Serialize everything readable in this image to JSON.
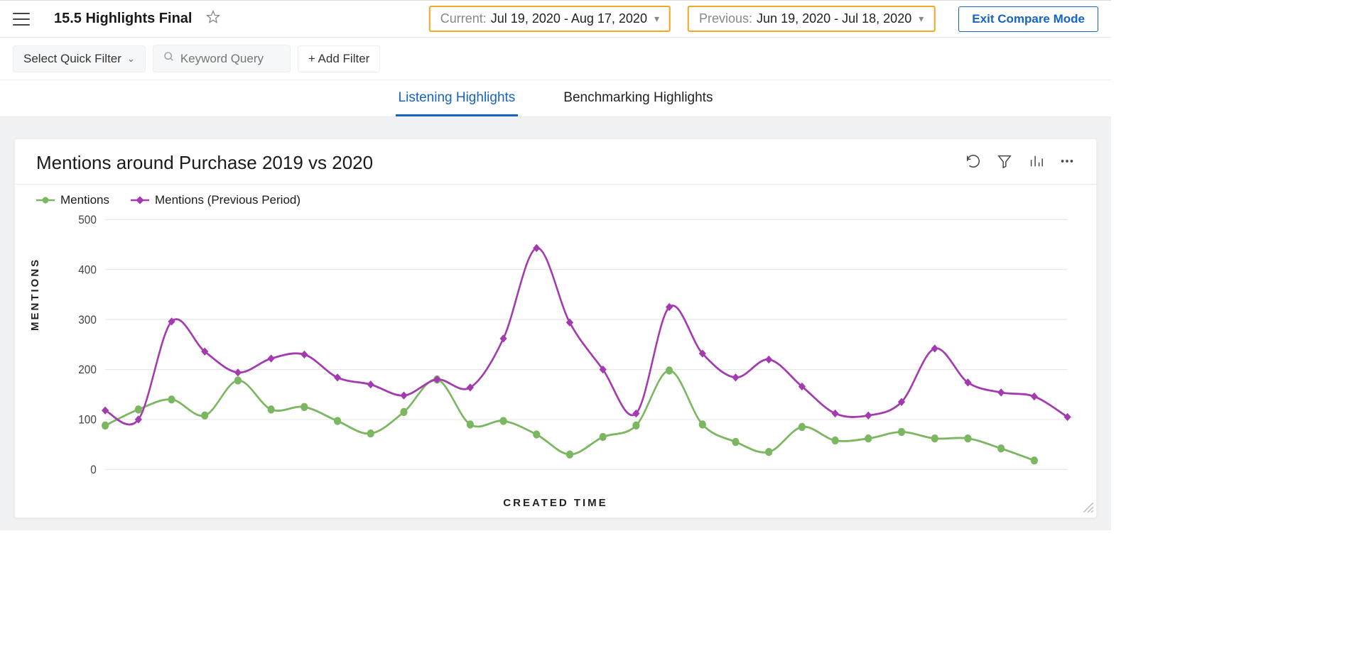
{
  "header": {
    "title": "15.5 Highlights Final",
    "current": {
      "label": "Current:",
      "range": "Jul 19, 2020 - Aug 17, 2020"
    },
    "previous": {
      "label": "Previous:",
      "range": "Jun 19, 2020 - Jul 18, 2020"
    },
    "exit_label": "Exit Compare Mode"
  },
  "filters": {
    "quick_filter_label": "Select Quick Filter",
    "keyword_placeholder": "Keyword Query",
    "add_filter_label": "+ Add Filter"
  },
  "tabs": {
    "listening": "Listening Highlights",
    "benchmarking": "Benchmarking Highlights"
  },
  "card": {
    "title": "Mentions around Purchase 2019 vs 2020",
    "legend_current": "Mentions",
    "legend_previous": "Mentions (Previous Period)",
    "ylabel": "MENTIONS",
    "xlabel": "CREATED TIME"
  },
  "chart": {
    "type": "line",
    "ylim": [
      0,
      500
    ],
    "yticks": [
      0,
      100,
      200,
      300,
      400,
      500
    ],
    "series": [
      {
        "name": "Mentions",
        "color": "#7bb661",
        "marker": "circle",
        "values": [
          88,
          120,
          140,
          108,
          178,
          120,
          125,
          97,
          72,
          115,
          180,
          90,
          97,
          70,
          30,
          65,
          88,
          198,
          90,
          55,
          35,
          85,
          58,
          62,
          75,
          62,
          62,
          42,
          18
        ]
      },
      {
        "name": "Mentions (Previous Period)",
        "color": "#a43ab0",
        "marker": "diamond",
        "values": [
          118,
          100,
          296,
          236,
          194,
          222,
          230,
          184,
          170,
          148,
          180,
          164,
          262,
          443,
          294,
          200,
          112,
          325,
          232,
          184,
          220,
          166,
          112,
          108,
          135,
          242,
          174,
          154,
          146,
          105
        ]
      }
    ],
    "line_width": 2.5,
    "marker_size": 5,
    "background_color": "#ffffff",
    "grid_color": "#e6e6e6",
    "axis_font_size": 15,
    "highlight_border_color": "#f5a623"
  }
}
